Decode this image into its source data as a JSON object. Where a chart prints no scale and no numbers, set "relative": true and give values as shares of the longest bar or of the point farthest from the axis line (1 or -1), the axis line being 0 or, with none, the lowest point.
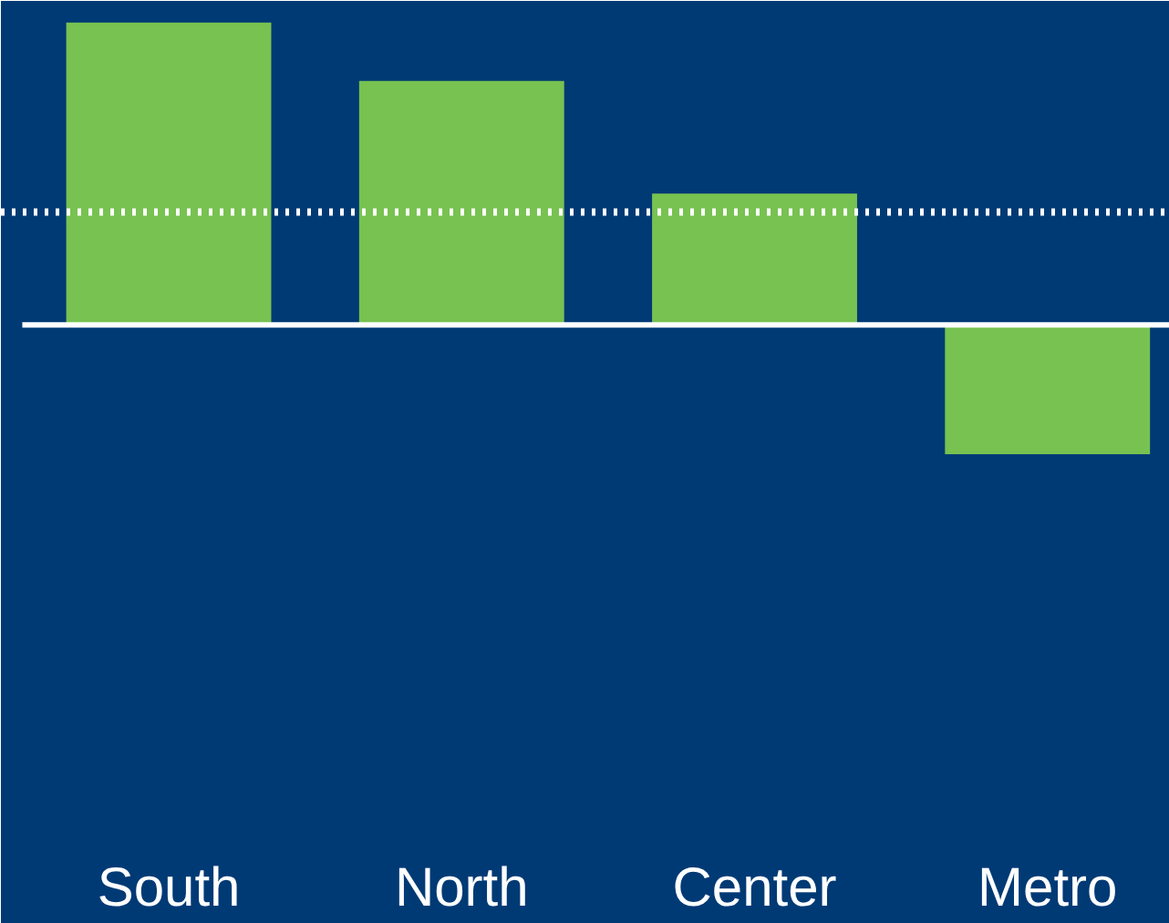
{
  "chart_data": {
    "type": "bar",
    "relative": true,
    "categories": [
      "South",
      "North",
      "Center",
      "Metro"
    ],
    "values": [
      1,
      0.807,
      0.434,
      -0.428
    ],
    "color": "#77c250",
    "ref_lines": [
      {
        "axis": "y",
        "value": 0.373,
        "label": null,
        "color": "#ffffff",
        "line_style": "dotted"
      }
    ],
    "grid": false
  }
}
